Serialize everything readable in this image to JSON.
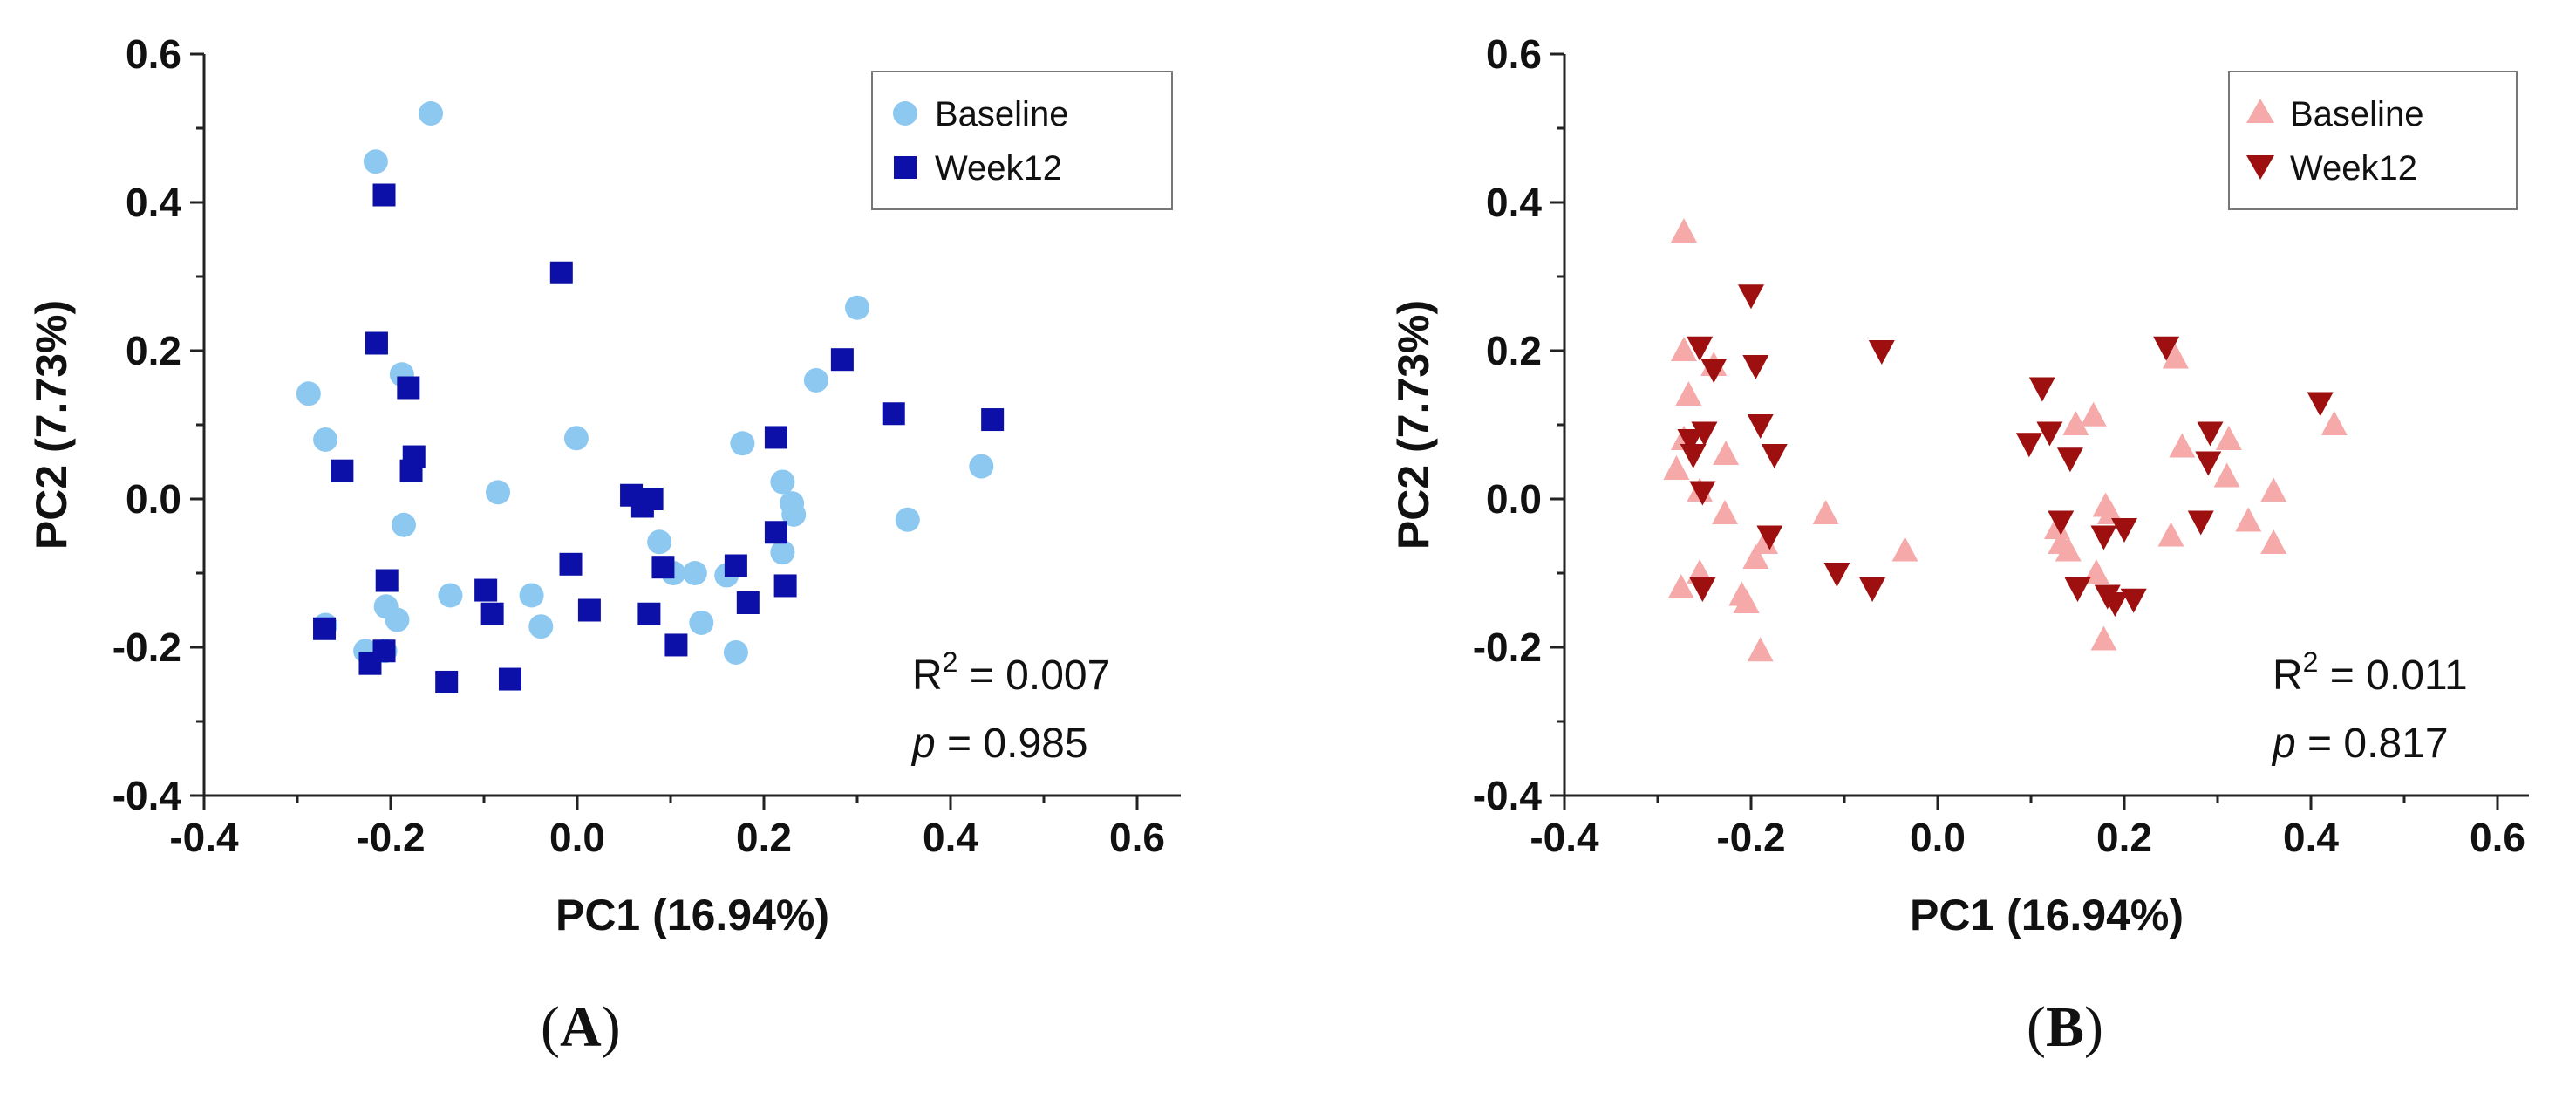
{
  "colors": {
    "A_baseline": "#8cc8f0",
    "A_week12": "#0c10a8",
    "B_baseline": "#f6a9a9",
    "B_week12": "#9e0f0f"
  },
  "chart_data": [
    {
      "type": "scatter",
      "panel": "A",
      "panel_label": "A",
      "xlabel": "PC1 (16.94%)",
      "ylabel": "PC2 (7.73%)",
      "xlim": [
        -0.4,
        0.6
      ],
      "ylim": [
        -0.4,
        0.6
      ],
      "xticks": [
        "-0.4",
        "-0.2",
        "0.0",
        "0.2",
        "0.4",
        "0.6"
      ],
      "yticks": [
        "-0.4",
        "-0.2",
        "0.0",
        "0.2",
        "0.4",
        "0.6"
      ],
      "grid": false,
      "legend": "top-right",
      "stats": {
        "r2_prefix": "R",
        "r2_sup": "2",
        "r2_value": " = 0.007",
        "p_label": "p",
        "p_value": " = 0.985"
      },
      "series": [
        {
          "name": "Baseline",
          "marker": "circle",
          "x": [
            -0.157,
            -0.216,
            -0.288,
            -0.27,
            -0.188,
            -0.186,
            -0.001,
            -0.085,
            0.3,
            0.256,
            0.177,
            0.22,
            0.433,
            0.354,
            0.232,
            0.088,
            0.103,
            0.126,
            0.16,
            0.23,
            0.22,
            -0.136,
            -0.049,
            -0.039,
            0.133,
            -0.205,
            -0.193,
            -0.206,
            -0.227,
            -0.27,
            0.17
          ],
          "y": [
            0.52,
            0.455,
            0.142,
            0.08,
            0.168,
            -0.035,
            0.082,
            0.009,
            0.258,
            0.16,
            0.075,
            0.023,
            0.044,
            -0.028,
            -0.021,
            -0.058,
            -0.1,
            -0.1,
            -0.103,
            -0.006,
            -0.072,
            -0.13,
            -0.13,
            -0.172,
            -0.167,
            -0.145,
            -0.163,
            -0.205,
            -0.205,
            -0.17,
            -0.207
          ]
        },
        {
          "name": "Week12",
          "marker": "square",
          "x": [
            -0.207,
            -0.215,
            -0.017,
            -0.181,
            -0.175,
            -0.178,
            -0.252,
            -0.204,
            -0.098,
            -0.091,
            -0.14,
            -0.072,
            -0.007,
            0.013,
            0.058,
            0.07,
            0.08,
            0.092,
            0.077,
            0.106,
            0.17,
            0.213,
            0.213,
            0.223,
            0.183,
            0.284,
            0.339,
            0.445,
            -0.271,
            -0.222,
            -0.207
          ],
          "y": [
            0.41,
            0.21,
            0.305,
            0.15,
            0.057,
            0.038,
            0.038,
            -0.11,
            -0.123,
            -0.155,
            -0.247,
            -0.243,
            -0.088,
            -0.15,
            0.005,
            -0.01,
            0.0,
            -0.092,
            -0.155,
            -0.197,
            -0.09,
            0.083,
            -0.045,
            -0.117,
            -0.14,
            0.188,
            0.115,
            0.107,
            -0.175,
            -0.222,
            -0.205
          ]
        }
      ]
    },
    {
      "type": "scatter",
      "panel": "B",
      "panel_label": "B",
      "xlabel": "PC1 (16.94%)",
      "ylabel": "PC2 (7.73%)",
      "xlim": [
        -0.4,
        0.6
      ],
      "ylim": [
        -0.4,
        0.6
      ],
      "xticks": [
        "-0.4",
        "-0.2",
        "0.0",
        "0.2",
        "0.4",
        "0.6"
      ],
      "yticks": [
        "-0.4",
        "-0.2",
        "0.0",
        "0.2",
        "0.4",
        "0.6"
      ],
      "grid": false,
      "legend": "top-right",
      "stats": {
        "r2_prefix": "R",
        "r2_sup": "2",
        "r2_value": " = 0.011",
        "p_label": "p",
        "p_value": " = 0.817"
      },
      "series": [
        {
          "name": "Baseline",
          "marker": "triangle-up",
          "x": [
            -0.272,
            -0.272,
            -0.267,
            -0.272,
            -0.28,
            -0.24,
            -0.227,
            -0.275,
            -0.255,
            -0.21,
            -0.205,
            -0.195,
            -0.185,
            -0.12,
            -0.035,
            -0.19,
            0.148,
            0.167,
            0.18,
            0.185,
            0.128,
            0.132,
            0.14,
            0.17,
            0.25,
            0.255,
            0.262,
            0.312,
            0.31,
            0.333,
            0.36,
            0.36,
            0.425,
            0.178,
            -0.255,
            -0.228
          ],
          "y": [
            0.36,
            0.2,
            0.14,
            0.08,
            0.04,
            0.18,
            0.06,
            -0.12,
            -0.1,
            -0.13,
            -0.14,
            -0.08,
            -0.06,
            -0.02,
            -0.07,
            -0.205,
            0.1,
            0.112,
            -0.01,
            -0.02,
            -0.04,
            -0.06,
            -0.07,
            -0.1,
            -0.05,
            0.19,
            0.07,
            0.08,
            0.03,
            -0.03,
            0.01,
            -0.06,
            0.1,
            -0.19,
            0.01,
            -0.02
          ]
        },
        {
          "name": "Week12",
          "marker": "triangle-down",
          "x": [
            -0.255,
            -0.2,
            -0.06,
            -0.24,
            -0.195,
            -0.25,
            -0.19,
            -0.175,
            -0.265,
            -0.262,
            -0.252,
            -0.18,
            -0.108,
            -0.07,
            -0.252,
            0.112,
            0.098,
            0.12,
            0.142,
            0.178,
            0.2,
            0.245,
            0.292,
            0.29,
            0.41,
            0.282,
            0.15,
            0.182,
            0.21,
            0.19,
            0.132
          ],
          "y": [
            0.205,
            0.275,
            0.2,
            0.175,
            0.18,
            0.09,
            0.1,
            0.06,
            0.08,
            0.06,
            0.01,
            -0.05,
            -0.1,
            -0.12,
            -0.12,
            0.15,
            0.075,
            0.09,
            0.055,
            -0.05,
            -0.04,
            0.205,
            0.09,
            0.05,
            0.13,
            -0.03,
            -0.12,
            -0.13,
            -0.135,
            -0.14,
            -0.03
          ]
        }
      ]
    }
  ]
}
